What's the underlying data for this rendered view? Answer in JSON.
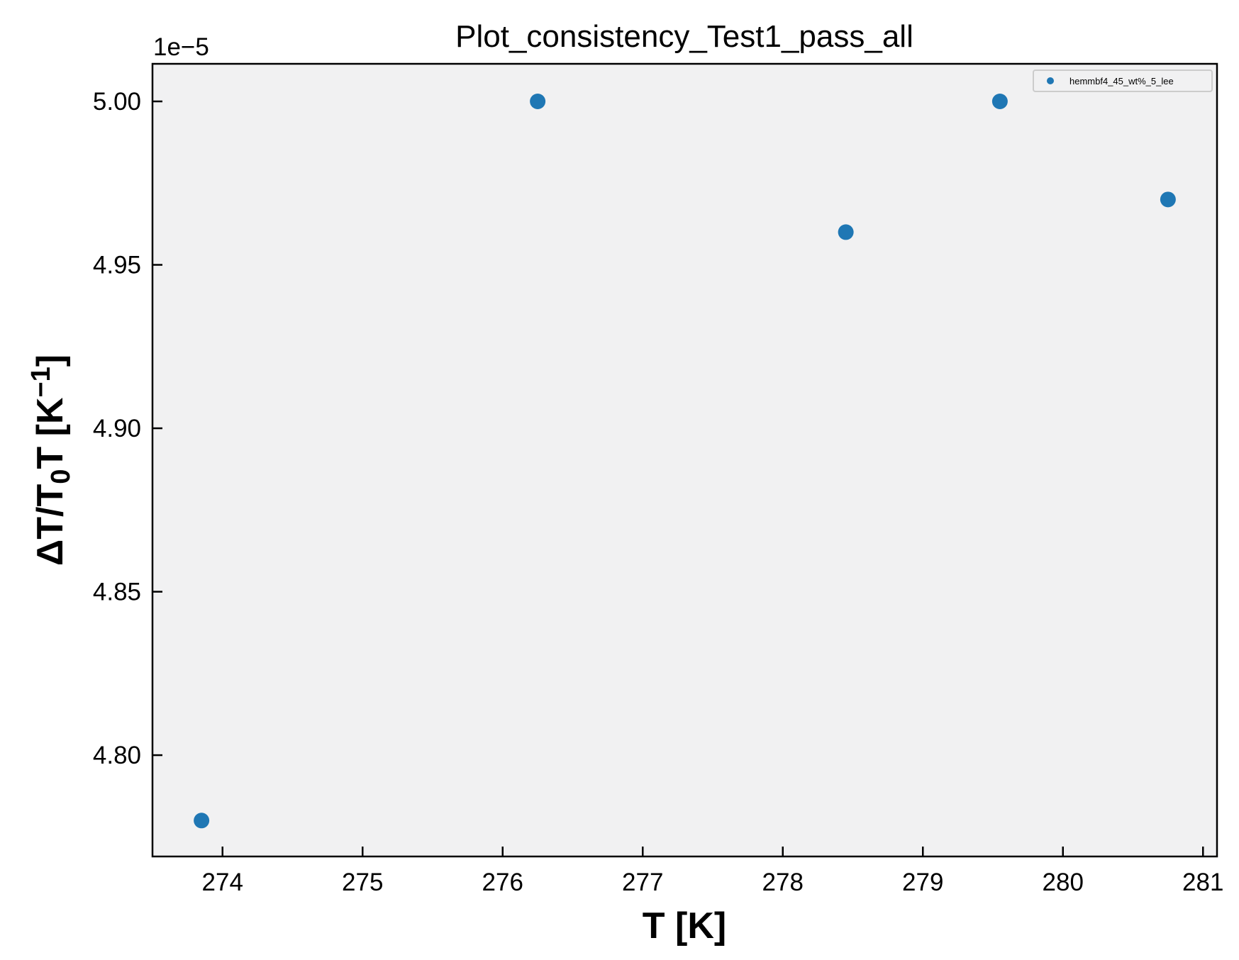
{
  "chart_data": {
    "type": "scatter",
    "title": "Plot_consistency_Test1_pass_all",
    "xlabel": "T [K]",
    "ylabel": "ΔT/T₀T [K⁻¹]",
    "y_offset_label": "1e−5",
    "xlim": [
      273.5,
      281.1
    ],
    "ylim": [
      4.769,
      5.0115
    ],
    "xticks": [
      274,
      275,
      276,
      277,
      278,
      279,
      280,
      281
    ],
    "xtick_labels": [
      "274",
      "275",
      "276",
      "277",
      "278",
      "279",
      "280",
      "281"
    ],
    "yticks": [
      4.8,
      4.85,
      4.9,
      4.95,
      5.0
    ],
    "ytick_labels": [
      "4.80",
      "4.85",
      "4.90",
      "4.95",
      "5.00"
    ],
    "grid": false,
    "legend_position": "top-right",
    "series": [
      {
        "name": "hemmbf4_45_wt%_5_lee",
        "color": "#1f77b4",
        "x": [
          273.85,
          276.25,
          278.45,
          279.55,
          280.75
        ],
        "y": [
          4.78,
          5.0,
          4.96,
          5.0,
          4.97
        ]
      }
    ]
  }
}
